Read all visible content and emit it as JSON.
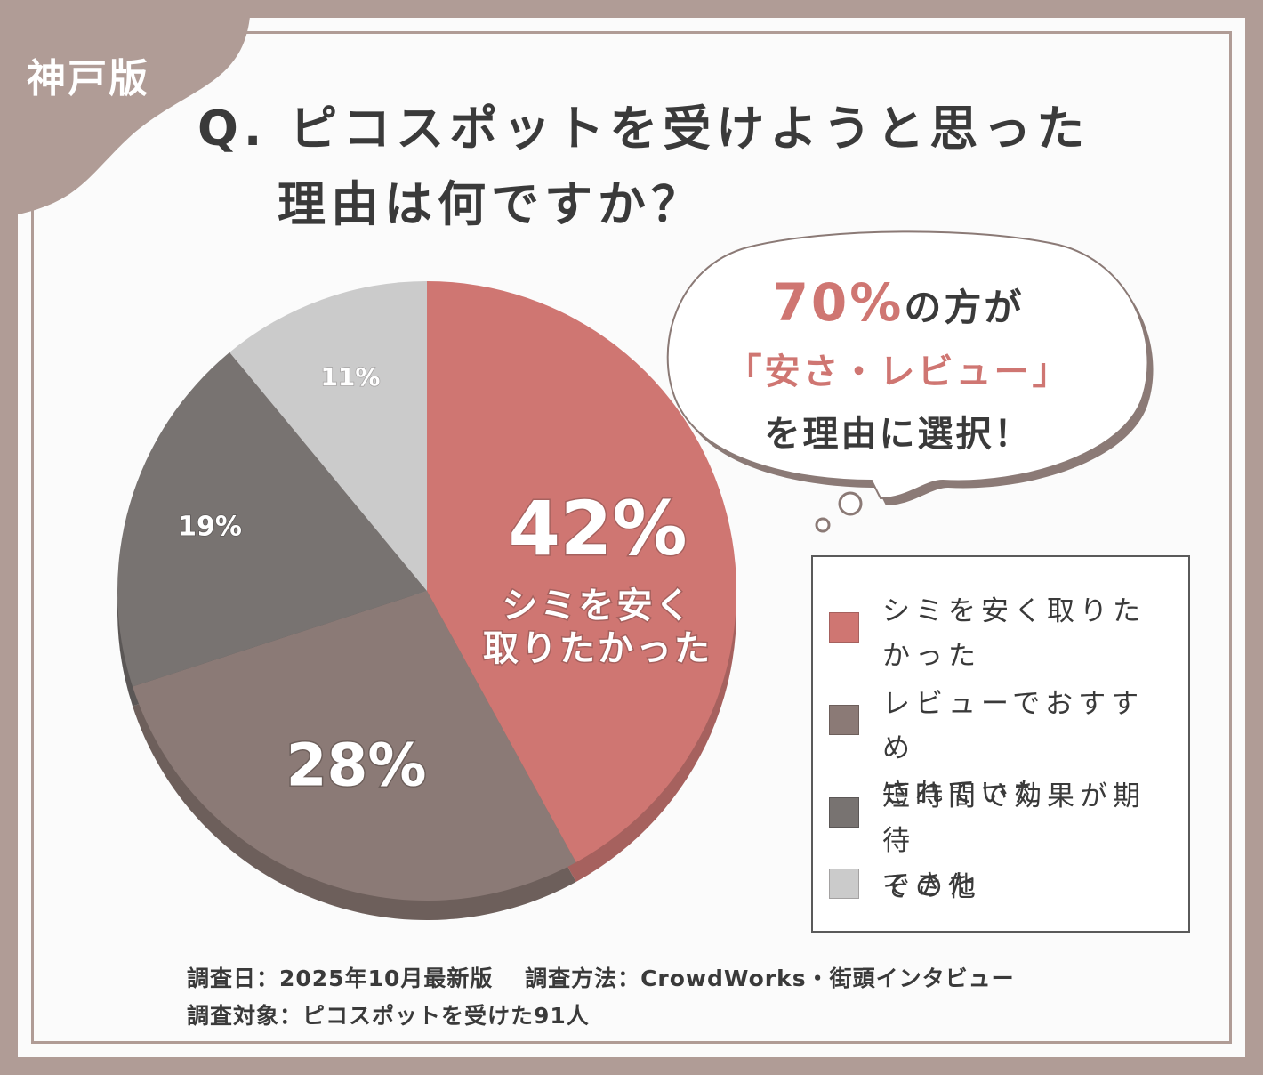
{
  "badge": "神戸版",
  "title": {
    "line1": "Q. ピコスポットを受けようと思った",
    "line2": "理由は何ですか？"
  },
  "callout": {
    "percent": "70%",
    "suffix": "の方が",
    "highlight": "「安さ・レビュー」",
    "line3": "を理由に選択！"
  },
  "footer": {
    "line1": "調査日：2025年10月最新版　 調査方法：CrowdWorks・街頭インタビュー",
    "line2": "調査対象：ピコスポットを受けた91人"
  },
  "chart_data": {
    "type": "pie",
    "series": [
      {
        "name": "シミを安く取りたかった",
        "value": 42,
        "label": "42%",
        "sublabel": [
          "シミを安く",
          "取りたかった"
        ],
        "color": "#cf7672",
        "side": "#a6615e"
      },
      {
        "name": "レビューでおすすめされていた",
        "value": 28,
        "label": "28%",
        "color": "#8b7a76",
        "side": "#6d5f5b"
      },
      {
        "name": "短時間で効果が期待できた",
        "value": 19,
        "label": "19%",
        "color": "#787371",
        "side": "#5b5756"
      },
      {
        "name": "その他",
        "value": 11,
        "label": "11%",
        "color": "#cbcbcb",
        "side": "#a4a2a2"
      }
    ],
    "legend": [
      [
        "シミを安く取りた",
        "かった"
      ],
      [
        "レビューでおすすめ",
        "されていた"
      ],
      [
        "短時間で効果が期待",
        "できた"
      ],
      [
        "その他"
      ]
    ],
    "legend_position": "right"
  }
}
